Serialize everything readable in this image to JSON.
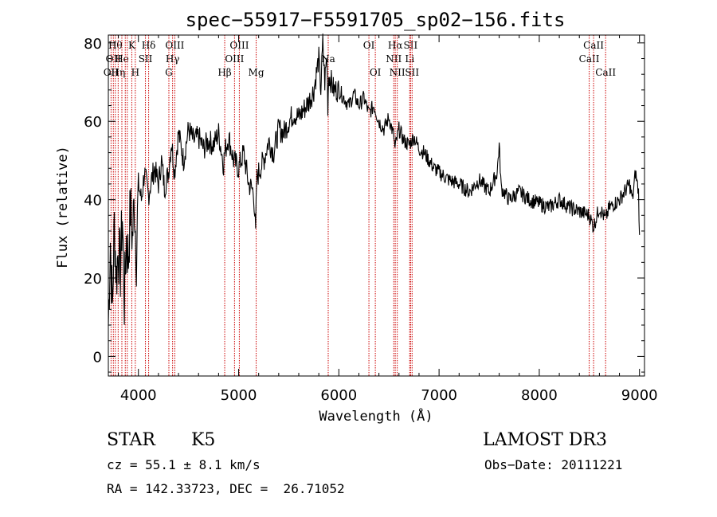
{
  "chart_data": {
    "type": "line",
    "title": "spec−55917−F5591705_sp02−156.fits",
    "xlabel": "Wavelength (Å)",
    "ylabel": "Flux (relative)",
    "xlim": [
      3700,
      9050
    ],
    "ylim": [
      -5,
      82
    ],
    "xticks": [
      4000,
      5000,
      6000,
      7000,
      8000,
      9000
    ],
    "yticks": [
      0,
      20,
      40,
      60,
      80
    ],
    "series": [
      {
        "name": "spectrum",
        "x": [
          3700,
          3720,
          3740,
          3760,
          3780,
          3800,
          3820,
          3840,
          3860,
          3880,
          3900,
          3920,
          3940,
          3960,
          3980,
          4000,
          4030,
          4060,
          4100,
          4130,
          4160,
          4200,
          4230,
          4260,
          4300,
          4330,
          4360,
          4400,
          4450,
          4500,
          4550,
          4600,
          4650,
          4700,
          4750,
          4800,
          4850,
          4860,
          4900,
          4950,
          5000,
          5050,
          5100,
          5150,
          5170,
          5180,
          5200,
          5250,
          5300,
          5350,
          5400,
          5450,
          5500,
          5550,
          5600,
          5650,
          5700,
          5750,
          5800,
          5820,
          5840,
          5860,
          5880,
          5890,
          5900,
          5950,
          6000,
          6050,
          6100,
          6150,
          6200,
          6250,
          6300,
          6350,
          6400,
          6450,
          6500,
          6550,
          6560,
          6600,
          6650,
          6700,
          6750,
          6800,
          6850,
          6900,
          6950,
          7000,
          7100,
          7200,
          7300,
          7400,
          7500,
          7580,
          7600,
          7620,
          7700,
          7800,
          7900,
          8000,
          8100,
          8200,
          8300,
          8400,
          8500,
          8540,
          8600,
          8660,
          8700,
          8800,
          8850,
          8900,
          8930,
          8960,
          8990,
          9000
        ],
        "y": [
          8,
          30,
          12,
          34,
          20,
          28,
          22,
          36,
          14,
          30,
          25,
          38,
          30,
          40,
          26,
          44,
          40,
          47,
          41,
          45,
          48,
          44,
          50,
          43,
          47,
          55,
          47,
          57,
          50,
          58,
          55,
          56,
          53,
          55,
          54,
          57,
          49,
          52,
          56,
          50,
          48,
          52,
          44,
          42,
          31,
          45,
          47,
          50,
          55,
          52,
          58,
          57,
          60,
          62,
          61,
          63,
          65,
          68,
          76,
          68,
          80,
          70,
          77,
          64,
          72,
          68,
          68,
          66,
          64,
          67,
          64,
          66,
          62,
          64,
          60,
          58,
          61,
          56,
          53,
          58,
          55,
          54,
          56,
          53,
          52,
          50,
          48,
          47,
          45,
          44,
          42,
          45,
          42,
          47,
          54,
          43,
          40,
          42,
          40,
          39,
          38,
          40,
          38,
          37,
          36,
          33,
          38,
          35,
          38,
          40,
          42,
          44,
          40,
          47,
          42,
          31
        ]
      }
    ],
    "lines": [
      {
        "wave": 3727,
        "label": "OII",
        "row": 2
      },
      {
        "wave": 3750,
        "label": "OII",
        "row": 1
      },
      {
        "wave": 3770,
        "label": "Hθ",
        "row": 0
      },
      {
        "wave": 3798,
        "label": "Hη",
        "row": 2
      },
      {
        "wave": 3835,
        "label": "He",
        "row": 1
      },
      {
        "wave": 3869,
        "label": "",
        "row": 0
      },
      {
        "wave": 3889,
        "label": "",
        "row": 0
      },
      {
        "wave": 3934,
        "label": "K",
        "row": 0
      },
      {
        "wave": 3969,
        "label": "H",
        "row": 2
      },
      {
        "wave": 4070,
        "label": "SII",
        "row": 1
      },
      {
        "wave": 4102,
        "label": "Hδ",
        "row": 0
      },
      {
        "wave": 4304,
        "label": "G",
        "row": 2
      },
      {
        "wave": 4341,
        "label": "Hγ",
        "row": 1
      },
      {
        "wave": 4363,
        "label": "OIII",
        "row": 0
      },
      {
        "wave": 4861,
        "label": "Hβ",
        "row": 2
      },
      {
        "wave": 4959,
        "label": "OIII",
        "row": 1
      },
      {
        "wave": 5007,
        "label": "OIII",
        "row": 0
      },
      {
        "wave": 5175,
        "label": "Mg",
        "row": 2
      },
      {
        "wave": 5894,
        "label": "Na",
        "row": 1
      },
      {
        "wave": 6300,
        "label": "OI",
        "row": 0
      },
      {
        "wave": 6364,
        "label": "OI",
        "row": 2
      },
      {
        "wave": 6548,
        "label": "NII",
        "row": 1
      },
      {
        "wave": 6563,
        "label": "Hα",
        "row": 0
      },
      {
        "wave": 6583,
        "label": "NII",
        "row": 2
      },
      {
        "wave": 6707,
        "label": "Li",
        "row": 1
      },
      {
        "wave": 6716,
        "label": "SII",
        "row": 0
      },
      {
        "wave": 6731,
        "label": "SII",
        "row": 2
      },
      {
        "wave": 8498,
        "label": "CaII",
        "row": 1
      },
      {
        "wave": 8542,
        "label": "CaII",
        "row": 0
      },
      {
        "wave": 8662,
        "label": "CaII",
        "row": 2
      }
    ],
    "line_color": "#cc0000",
    "grid": false
  },
  "info": {
    "object_class": "STAR",
    "subclass": "K5",
    "survey": "LAMOST DR3",
    "cz": "cz = 55.1 ± 8.1 km/s",
    "obs_date": "Obs−Date: 20111221",
    "coords": "RA = 142.33723, DEC =  26.71052"
  }
}
